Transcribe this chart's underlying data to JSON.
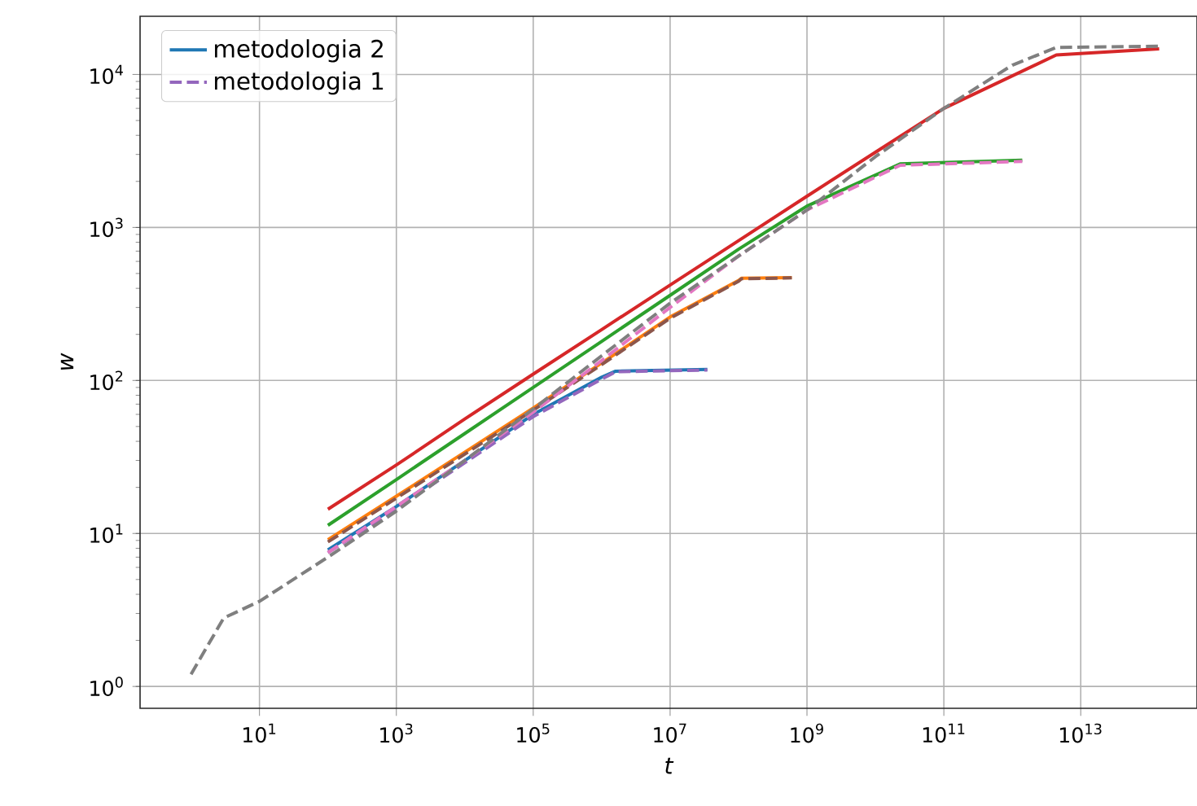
{
  "chart_data": {
    "type": "line",
    "xlabel": "t",
    "ylabel": "w",
    "log": "xy",
    "grid": true,
    "legend": "top left",
    "xlim": [
      0.18,
      500000000000000.0
    ],
    "ylim": [
      0.72,
      24000
    ],
    "xticks": [
      {
        "value": 10,
        "label": "10$^{1}$"
      },
      {
        "value": 1000,
        "label": "10$^{3}$"
      },
      {
        "value": 100000,
        "label": "10$^{5}$"
      },
      {
        "value": 10000000,
        "label": "10$^{7}$"
      },
      {
        "value": 1000000000,
        "label": "10$^{9}$"
      },
      {
        "value": 100000000000,
        "label": "10$^{11}$"
      },
      {
        "value": 10000000000000,
        "label": "10$^{13}$"
      }
    ],
    "yticks": [
      {
        "value": 1,
        "label": "10$^{0}$"
      },
      {
        "value": 10,
        "label": "10$^{1}$"
      },
      {
        "value": 100,
        "label": "10$^{2}$"
      },
      {
        "value": 1000,
        "label": "10$^{3}$"
      },
      {
        "value": 10000,
        "label": "10$^{4}$"
      }
    ],
    "series": [
      {
        "name": "metodologia 2",
        "color": "#1f77b4",
        "line_style": "solid",
        "x": [
          100,
          1000,
          10000,
          100000,
          1000000,
          1600000,
          35000000
        ],
        "values": [
          7.8,
          15,
          30,
          60,
          105,
          115,
          118
        ]
      },
      {
        "color": "#ff7f0e",
        "line_style": "solid",
        "x": [
          100,
          1000,
          10000,
          100000,
          1000000,
          10000000,
          100000000,
          110000000,
          600000000
        ],
        "values": [
          9.1,
          17.5,
          34,
          66,
          130,
          260,
          450,
          465,
          470
        ]
      },
      {
        "color": "#2ca02c",
        "line_style": "solid",
        "x": [
          100,
          1000,
          10000,
          100000,
          1000000,
          10000000,
          100000000,
          1000000000,
          23000000000,
          1400000000000
        ],
        "values": [
          11.3,
          22.5,
          45,
          90,
          180,
          360,
          720,
          1380,
          2600,
          2750
        ]
      },
      {
        "color": "#d62728",
        "line_style": "solid",
        "x": [
          100,
          1000,
          10000,
          100000,
          1000000,
          10000000,
          100000000,
          1000000000,
          10000000000,
          100000000000,
          4400000000000,
          140000000000000
        ],
        "values": [
          14.4,
          28,
          56,
          110,
          215,
          420,
          820,
          1600,
          3100,
          6000,
          13400,
          14700
        ]
      },
      {
        "name": "metodologia 1",
        "color": "#9467bd",
        "line_style": "dashed",
        "x": [
          100,
          1000,
          10000,
          100000,
          1000000,
          1600000,
          35000000
        ],
        "values": [
          7.5,
          14.5,
          29,
          58,
          102,
          114,
          117
        ]
      },
      {
        "color": "#8c564b",
        "line_style": "dashed",
        "x": [
          100,
          1000,
          10000,
          100000,
          1000000,
          10000000,
          100000000,
          110000000,
          600000000
        ],
        "values": [
          8.8,
          17,
          33,
          64,
          127,
          255,
          445,
          462,
          468
        ]
      },
      {
        "color": "#e377c2",
        "line_style": "dashed",
        "x": [
          100,
          1000,
          10000,
          100000,
          1000000,
          10000000,
          100000000,
          1000000000,
          23000000000,
          1400000000000
        ],
        "values": [
          7.5,
          15,
          30,
          62,
          135,
          300,
          650,
          1300,
          2550,
          2700
        ]
      },
      {
        "color": "#7f7f7f",
        "line_style": "dashed",
        "x": [
          1,
          3,
          10,
          100,
          1000,
          10000,
          100000,
          1000000,
          10000000,
          100000000,
          1000000000,
          10000000000,
          100000000000,
          1000000000000,
          4400000000000,
          140000000000000
        ],
        "values": [
          1.2,
          2.8,
          3.6,
          7,
          14,
          30,
          65,
          145,
          320,
          650,
          1300,
          2900,
          6000,
          11500,
          15000,
          15300
        ]
      }
    ]
  }
}
